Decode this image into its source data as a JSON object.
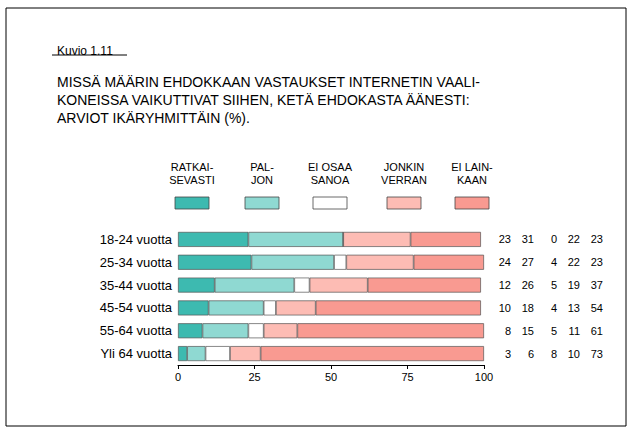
{
  "chart_data": {
    "type": "bar",
    "subtitle": "Kuvio 1.11",
    "title": "MISSÄ MÄÄRIN EHDOKKAAN VASTAUKSET INTERNETIN VAALI-\nKONEISSA VAIKUTTIVAT SIIHEN, KETÄ EHDOKASTA ÄÄNESTI:\nARVIOT IKÄRYHMITTÄIN (%).",
    "orientation": "horizontal",
    "stacked": true,
    "grid": false,
    "data_labels": true,
    "categories": [
      "18-24 vuotta",
      "25-34 vuotta",
      "35-44 vuotta",
      "45-54 vuotta",
      "55-64 vuotta",
      "Yli 64 vuotta"
    ],
    "series": [
      {
        "name": "RATKAI-\nSEVASTI",
        "color": "#3dbab0",
        "values": [
          23,
          24,
          12,
          10,
          8,
          3
        ]
      },
      {
        "name": "PAL-\nJON",
        "color": "#8fd9d2",
        "values": [
          31,
          27,
          26,
          18,
          15,
          6
        ]
      },
      {
        "name": "EI OSAA\nSANOA",
        "color": "#ffffff",
        "values": [
          0,
          4,
          5,
          4,
          5,
          8
        ]
      },
      {
        "name": "JONKIN\nVERRAN",
        "color": "#fdbcb4",
        "values": [
          22,
          22,
          19,
          13,
          11,
          10
        ]
      },
      {
        "name": "EI LAIN-\nKAAN",
        "color": "#f99a91",
        "values": [
          23,
          23,
          37,
          54,
          61,
          73
        ]
      }
    ],
    "xlim": [
      0,
      100
    ],
    "xticks": [
      0,
      25,
      50,
      75,
      100
    ]
  }
}
